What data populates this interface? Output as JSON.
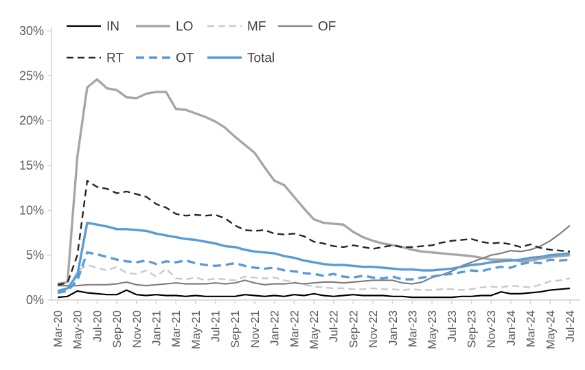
{
  "chart_data": {
    "type": "line",
    "title": "",
    "xlabel": "",
    "ylabel": "",
    "ylim": [
      0,
      30
    ],
    "yticks": [
      "0%",
      "5%",
      "10%",
      "15%",
      "20%",
      "25%",
      "30%"
    ],
    "grid": false,
    "legend_position": "top",
    "x_tick_interval": 2,
    "x": [
      "Mar-20",
      "Apr-20",
      "May-20",
      "Jun-20",
      "Jul-20",
      "Aug-20",
      "Sep-20",
      "Oct-20",
      "Nov-20",
      "Dec-20",
      "Jan-21",
      "Feb-21",
      "Mar-21",
      "Apr-21",
      "May-21",
      "Jun-21",
      "Jul-21",
      "Aug-21",
      "Sep-21",
      "Oct-21",
      "Nov-21",
      "Dec-21",
      "Jan-22",
      "Feb-22",
      "Mar-22",
      "Apr-22",
      "May-22",
      "Jun-22",
      "Jul-22",
      "Aug-22",
      "Sep-22",
      "Oct-22",
      "Nov-22",
      "Dec-22",
      "Jan-23",
      "Feb-23",
      "Mar-23",
      "Apr-23",
      "May-23",
      "Jun-23",
      "Jul-23",
      "Aug-23",
      "Sep-23",
      "Oct-23",
      "Nov-23",
      "Dec-23",
      "Jan-24",
      "Feb-24",
      "Mar-24",
      "Apr-24",
      "May-24",
      "Jun-24",
      "Jul-24"
    ],
    "series": [
      {
        "name": "IN",
        "color": "#000000",
        "dash": "solid",
        "width": 2.2,
        "values": [
          0.3,
          0.4,
          1.0,
          0.8,
          0.7,
          0.6,
          0.6,
          1.1,
          0.6,
          0.5,
          0.6,
          0.5,
          0.5,
          0.4,
          0.5,
          0.4,
          0.4,
          0.4,
          0.4,
          0.6,
          0.5,
          0.4,
          0.5,
          0.4,
          0.6,
          0.5,
          0.7,
          0.5,
          0.4,
          0.5,
          0.6,
          0.5,
          0.5,
          0.5,
          0.4,
          0.4,
          0.3,
          0.3,
          0.3,
          0.3,
          0.3,
          0.4,
          0.4,
          0.5,
          0.5,
          0.9,
          0.7,
          0.7,
          0.8,
          0.9,
          1.1,
          1.2,
          1.3
        ]
      },
      {
        "name": "LO",
        "color": "#a6a6a6",
        "dash": "solid",
        "width": 3.4,
        "values": [
          1.8,
          2.0,
          16.0,
          23.7,
          24.6,
          23.6,
          23.4,
          22.6,
          22.5,
          23.0,
          23.2,
          23.2,
          21.3,
          21.2,
          20.8,
          20.4,
          19.9,
          19.2,
          18.2,
          17.3,
          16.4,
          14.8,
          13.3,
          12.8,
          11.5,
          10.2,
          9.0,
          8.6,
          8.5,
          8.4,
          7.6,
          7.0,
          6.6,
          6.3,
          6.1,
          5.9,
          5.6,
          5.4,
          5.3,
          5.2,
          5.1,
          5.0,
          4.9,
          4.7,
          4.5,
          4.5,
          4.5,
          4.3,
          4.4,
          4.6,
          4.8,
          4.9,
          5.0
        ]
      },
      {
        "name": "MF",
        "color": "#c9c9c9",
        "dash": "dashed",
        "width": 2.4,
        "values": [
          1.0,
          1.2,
          3.2,
          3.9,
          3.6,
          3.3,
          3.7,
          3.0,
          2.9,
          3.3,
          2.6,
          3.5,
          2.4,
          2.3,
          2.5,
          2.2,
          2.4,
          2.3,
          2.2,
          2.6,
          2.5,
          2.4,
          2.5,
          2.2,
          2.0,
          1.7,
          1.5,
          1.4,
          1.3,
          1.3,
          1.2,
          1.2,
          1.3,
          1.2,
          1.2,
          1.1,
          1.2,
          1.1,
          1.1,
          1.2,
          1.2,
          1.1,
          1.2,
          1.4,
          1.5,
          1.4,
          1.6,
          1.5,
          1.4,
          1.7,
          2.1,
          2.2,
          2.4
        ]
      },
      {
        "name": "OF",
        "color": "#808080",
        "dash": "solid",
        "width": 2.2,
        "values": [
          1.6,
          1.6,
          1.6,
          1.7,
          1.7,
          1.7,
          1.8,
          2.0,
          1.7,
          1.6,
          1.7,
          1.8,
          1.9,
          1.8,
          1.8,
          1.8,
          1.9,
          1.8,
          1.9,
          2.2,
          1.9,
          1.7,
          1.8,
          1.8,
          1.9,
          1.8,
          1.9,
          2.0,
          2.0,
          1.9,
          2.0,
          2.1,
          2.2,
          2.2,
          2.2,
          1.9,
          1.8,
          2.0,
          2.5,
          2.8,
          3.2,
          3.8,
          4.2,
          4.6,
          5.0,
          5.2,
          5.5,
          5.4,
          5.6,
          6.0,
          6.6,
          7.4,
          8.3
        ]
      },
      {
        "name": "RT",
        "color": "#262626",
        "dash": "dashed",
        "width": 2.4,
        "values": [
          1.7,
          1.9,
          5.0,
          13.3,
          12.6,
          12.4,
          11.9,
          12.1,
          11.8,
          11.5,
          10.7,
          10.3,
          9.6,
          9.4,
          9.5,
          9.4,
          9.5,
          9.1,
          8.3,
          7.8,
          7.7,
          7.8,
          7.4,
          7.3,
          7.4,
          7.1,
          6.5,
          6.3,
          6.0,
          5.9,
          6.1,
          5.9,
          5.7,
          5.9,
          6.1,
          5.9,
          5.9,
          6.0,
          6.1,
          6.4,
          6.6,
          6.7,
          6.8,
          6.5,
          6.3,
          6.4,
          6.2,
          5.9,
          6.2,
          5.8,
          5.6,
          5.5,
          5.4
        ]
      },
      {
        "name": "OT",
        "color": "#5b9bd5",
        "dash": "dashed",
        "width": 3.4,
        "values": [
          0.8,
          1.0,
          2.2,
          5.3,
          5.1,
          4.8,
          4.5,
          4.3,
          4.2,
          4.4,
          4.0,
          4.3,
          4.2,
          4.4,
          4.1,
          3.9,
          3.8,
          3.9,
          4.1,
          3.8,
          3.6,
          3.5,
          3.6,
          3.3,
          3.2,
          3.0,
          2.9,
          2.7,
          2.9,
          2.6,
          2.5,
          2.7,
          2.5,
          2.4,
          2.6,
          2.3,
          2.3,
          2.5,
          2.6,
          2.8,
          2.9,
          3.1,
          3.3,
          3.2,
          3.5,
          3.7,
          3.6,
          4.0,
          4.2,
          4.1,
          4.5,
          4.4,
          4.5
        ]
      },
      {
        "name": "Total",
        "color": "#5b9bd5",
        "dash": "solid",
        "width": 3.4,
        "values": [
          1.0,
          1.3,
          2.8,
          8.6,
          8.4,
          8.2,
          7.9,
          7.9,
          7.8,
          7.7,
          7.4,
          7.2,
          7.0,
          6.8,
          6.7,
          6.5,
          6.3,
          6.0,
          5.9,
          5.6,
          5.4,
          5.3,
          5.2,
          4.9,
          4.7,
          4.4,
          4.2,
          4.0,
          3.9,
          3.9,
          3.8,
          3.7,
          3.7,
          3.6,
          3.5,
          3.4,
          3.4,
          3.3,
          3.3,
          3.4,
          3.5,
          3.7,
          3.9,
          4.0,
          4.2,
          4.3,
          4.4,
          4.5,
          4.7,
          4.8,
          5.0,
          5.1,
          5.2
        ]
      }
    ],
    "axis_color": "#d2d2d2",
    "tick_label_color": "#595959",
    "legend_label_color": "#404040"
  }
}
